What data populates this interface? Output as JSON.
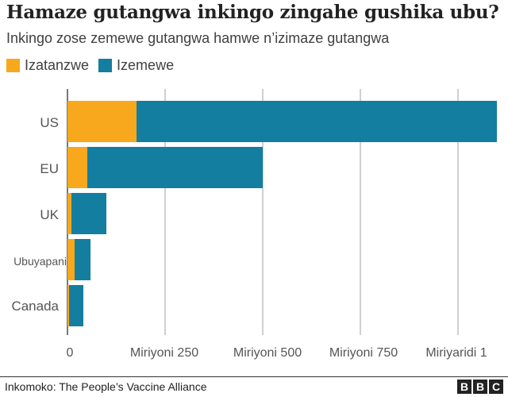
{
  "header": {
    "title": "Hamaze gutangwa inkingo zingahe gushika ubu?",
    "subtitle": "Inkingo zose zemewe gutangwa hamwe n’izimaze gutangwa"
  },
  "legend": [
    {
      "label": "Izatanzwe",
      "color": "#f8a81d"
    },
    {
      "label": "Izemewe",
      "color": "#137ea0"
    }
  ],
  "axis": {
    "ticks": [
      "0",
      "Miriyoni 250",
      "Miriyoni 500",
      "Miriyoni 750",
      "Miriyaridi 1"
    ]
  },
  "footer": {
    "source": "Inkomoko: The People’s Vaccine Alliance",
    "logo": [
      "B",
      "B",
      "C"
    ]
  },
  "chart_data": {
    "type": "bar",
    "orientation": "horizontal",
    "stacked": true,
    "title": "Hamaze gutangwa inkingo zingahe gushika ubu?",
    "subtitle": "Inkingo zose zemewe gutangwa hamwe n’izimaze gutangwa",
    "categories": [
      "US",
      "EU",
      "UK",
      "Ubuyapani",
      "Canada"
    ],
    "series": [
      {
        "name": "Izatanzwe",
        "color": "#f8a81d",
        "values": [
          177,
          51,
          10,
          18,
          4
        ]
      },
      {
        "name": "Izemewe",
        "color": "#137ea0",
        "values": [
          923,
          449,
          90,
          41,
          36
        ]
      }
    ],
    "totals": [
      1100,
      500,
      100,
      59,
      40
    ],
    "units": "millions of doses",
    "xlabel": "",
    "ylabel": "",
    "xlim": [
      0,
      1100
    ],
    "x_ticks": [
      0,
      250,
      500,
      750,
      1000
    ],
    "x_tick_labels": [
      "0",
      "Miriyoni 250",
      "Miriyoni 500",
      "Miriyoni 750",
      "Miriyaridi 1"
    ],
    "grid": "vertical",
    "legend_position": "top-left",
    "source": "Inkomoko: The People’s Vaccine Alliance"
  }
}
